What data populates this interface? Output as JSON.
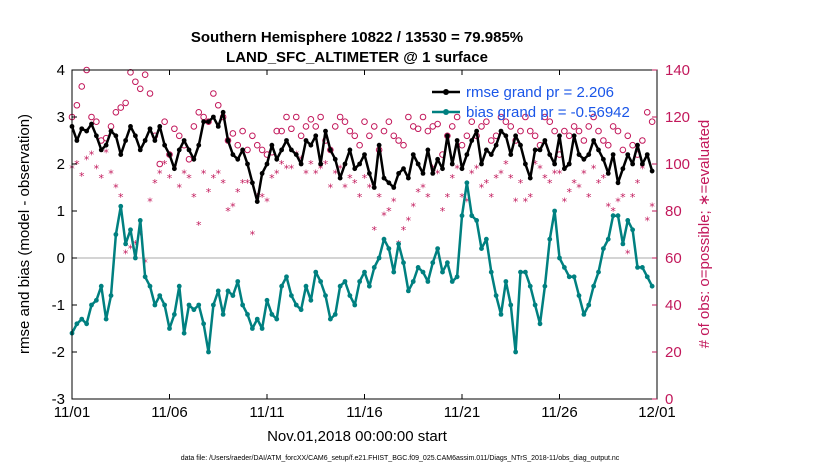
{
  "chart_data": {
    "type": "line",
    "title": "Southern Hemisphere 10822 / 13530 = 79.985%",
    "subtitle": "LAND_SFC_ALTIMETER @ 1 surface",
    "xlabel": "Nov.01,2018 00:00:00 start",
    "ylabel": "rmse and bias (model - observation)",
    "ylabel_right": "# of obs: o=possible; ∗=evaluated",
    "xlim": [
      0,
      30
    ],
    "ylim": [
      -3,
      4
    ],
    "ylim_right": [
      0,
      140
    ],
    "x_tick_values": [
      0,
      5,
      10,
      15,
      20,
      25,
      30
    ],
    "x_tick_labels": [
      "11/01",
      "11/06",
      "11/11",
      "11/16",
      "11/21",
      "11/26",
      "12/01"
    ],
    "y_ticks": [
      -3,
      -2,
      -1,
      0,
      1,
      2,
      3,
      4
    ],
    "y_ticks_right": [
      0,
      20,
      40,
      60,
      80,
      100,
      120,
      140
    ],
    "zero_line": 0,
    "legend_position": "top-right",
    "footnote": "data file: /Users/raeder/DAI/ATM_forcXX/CAM6_setup/f.e21.FHIST_BGC.f09_025.CAM6assim.011/Diags_NTrS_2018-11/obs_diag_output.nc",
    "colors": {
      "rmse": "#000000",
      "bias": "#008080",
      "obs": "#c2185b",
      "legend_text": "#1a56e8",
      "zero": "#aaaaaa"
    },
    "x": [
      0.0,
      0.25,
      0.5,
      0.75,
      1.0,
      1.25,
      1.5,
      1.75,
      2.0,
      2.25,
      2.5,
      2.75,
      3.0,
      3.25,
      3.5,
      3.75,
      4.0,
      4.25,
      4.5,
      4.75,
      5.0,
      5.25,
      5.5,
      5.75,
      6.0,
      6.25,
      6.5,
      6.75,
      7.0,
      7.25,
      7.5,
      7.75,
      8.0,
      8.25,
      8.5,
      8.75,
      9.0,
      9.25,
      9.5,
      9.75,
      10.0,
      10.25,
      10.5,
      10.75,
      11.0,
      11.25,
      11.5,
      11.75,
      12.0,
      12.25,
      12.5,
      12.75,
      13.0,
      13.25,
      13.5,
      13.75,
      14.0,
      14.25,
      14.5,
      14.75,
      15.0,
      15.25,
      15.5,
      15.75,
      16.0,
      16.25,
      16.5,
      16.75,
      17.0,
      17.25,
      17.5,
      17.75,
      18.0,
      18.25,
      18.5,
      18.75,
      19.0,
      19.25,
      19.5,
      19.75,
      20.0,
      20.25,
      20.5,
      20.75,
      21.0,
      21.25,
      21.5,
      21.75,
      22.0,
      22.25,
      22.5,
      22.75,
      23.0,
      23.25,
      23.5,
      23.75,
      24.0,
      24.25,
      24.5,
      24.75,
      25.0,
      25.25,
      25.5,
      25.75,
      26.0,
      26.25,
      26.5,
      26.75,
      27.0,
      27.25,
      27.5,
      27.75,
      28.0,
      28.25,
      28.5,
      28.75,
      29.0,
      29.25,
      29.5,
      29.75
    ],
    "series": [
      {
        "name": "rmse grand pr = 2.206",
        "marker": "dot",
        "values": [
          2.8,
          2.5,
          2.75,
          2.7,
          2.85,
          2.6,
          2.3,
          2.4,
          2.7,
          2.6,
          2.2,
          2.5,
          2.8,
          2.6,
          2.3,
          2.5,
          2.75,
          2.5,
          2.8,
          2.4,
          2.2,
          1.9,
          2.3,
          2.5,
          2.3,
          2.1,
          2.4,
          2.9,
          2.9,
          3.0,
          2.8,
          3.1,
          2.5,
          2.2,
          2.1,
          2.3,
          2.0,
          1.6,
          1.2,
          1.8,
          2.0,
          2.4,
          2.1,
          2.3,
          2.5,
          2.3,
          2.2,
          2.0,
          2.5,
          2.4,
          2.6,
          2.0,
          2.7,
          2.3,
          2.1,
          1.7,
          2.0,
          2.3,
          1.9,
          2.0,
          2.2,
          1.8,
          1.5,
          2.4,
          1.7,
          1.6,
          1.5,
          1.8,
          1.9,
          1.7,
          2.2,
          2.0,
          1.8,
          2.3,
          1.8,
          2.1,
          1.9,
          2.6,
          2.0,
          2.5,
          1.9,
          2.2,
          2.5,
          2.7,
          2.0,
          2.3,
          2.2,
          2.4,
          2.7,
          2.6,
          2.2,
          2.6,
          2.4,
          2.0,
          1.7,
          2.3,
          2.3,
          2.5,
          2.2,
          2.0,
          2.6,
          1.9,
          2.0,
          2.6,
          2.2,
          2.1,
          2.2,
          2.5,
          2.3,
          2.1,
          1.8,
          2.2,
          1.6,
          1.9,
          2.2,
          2.0,
          2.4,
          2.0,
          2.2,
          1.85
        ]
      },
      {
        "name": "bias grand pr = -0.56942",
        "marker": "dot",
        "values": [
          -1.6,
          -1.4,
          -1.3,
          -1.4,
          -1.0,
          -0.9,
          -0.6,
          -1.3,
          -0.8,
          0.5,
          1.1,
          0.3,
          0.6,
          0.0,
          0.8,
          -0.4,
          -0.6,
          -1.0,
          -0.8,
          -1.0,
          -1.5,
          -1.2,
          -0.6,
          -1.6,
          -1.0,
          -1.1,
          -1.0,
          -1.4,
          -2.0,
          -1.0,
          -0.7,
          -1.2,
          -0.7,
          -0.8,
          -0.5,
          -1.0,
          -1.2,
          -1.5,
          -1.3,
          -1.5,
          -0.9,
          -1.2,
          -1.3,
          -0.6,
          -0.4,
          -0.8,
          -1.0,
          -1.1,
          -0.6,
          -0.9,
          -0.3,
          -0.5,
          -0.8,
          -1.3,
          -1.2,
          -0.6,
          -0.5,
          -0.8,
          -1.0,
          -0.5,
          -0.3,
          -0.6,
          -0.2,
          0.0,
          0.4,
          0.2,
          -0.3,
          0.3,
          -0.1,
          -0.7,
          -0.5,
          -0.2,
          -0.3,
          -0.5,
          -0.1,
          0.2,
          -0.3,
          -0.1,
          -0.5,
          -0.4,
          0.9,
          1.6,
          0.9,
          0.8,
          0.2,
          0.4,
          -0.3,
          -0.8,
          -1.2,
          -0.5,
          -1.0,
          -2.0,
          -0.3,
          -0.3,
          -0.6,
          -1.0,
          -1.4,
          -0.6,
          0.4,
          1.0,
          0.0,
          -0.2,
          -0.4,
          -0.4,
          -0.8,
          -1.2,
          -1.0,
          -0.6,
          -0.3,
          0.2,
          0.4,
          0.9,
          0.9,
          0.3,
          0.8,
          0.6,
          -0.2,
          -0.2,
          -0.4,
          -0.6
        ]
      },
      {
        "name": "possible",
        "marker": "circle",
        "values": [
          120,
          125,
          133,
          140,
          120,
          118,
          110,
          111,
          116,
          122,
          124,
          126,
          139,
          135,
          132,
          138,
          130,
          112,
          100,
          118,
          104,
          115,
          112,
          108,
          102,
          116,
          122,
          120,
          118,
          130,
          125,
          120,
          110,
          113,
          108,
          114,
          106,
          112,
          108,
          106,
          104,
          105,
          114,
          114,
          120,
          115,
          120,
          112,
          116,
          119,
          116,
          120,
          110,
          106,
          116,
          120,
          118,
          114,
          112,
          108,
          118,
          112,
          116,
          106,
          114,
          118,
          112,
          110,
          108,
          120,
          116,
          115,
          120,
          114,
          116,
          117,
          104,
          112,
          116,
          120,
          108,
          112,
          118,
          112,
          116,
          118,
          110,
          112,
          120,
          118,
          116,
          110,
          114,
          120,
          114,
          112,
          108,
          120,
          118,
          114,
          104,
          114,
          112,
          116,
          114,
          110,
          116,
          120,
          114,
          110,
          108,
          116,
          114,
          106,
          112,
          108,
          104,
          110,
          122,
          118
        ]
      },
      {
        "name": "evaluated",
        "marker": "star",
        "values": [
          98,
          100,
          95,
          102,
          104,
          98,
          94,
          105,
          96,
          90,
          86,
          62,
          64,
          66,
          70,
          58,
          84,
          92,
          96,
          100,
          94,
          98,
          90,
          96,
          94,
          86,
          74,
          96,
          88,
          94,
          96,
          92,
          80,
          82,
          88,
          92,
          92,
          70,
          86,
          86,
          84,
          94,
          96,
          100,
          98,
          98,
          104,
          102,
          96,
          100,
          96,
          98,
          100,
          90,
          96,
          98,
          90,
          94,
          92,
          86,
          94,
          90,
          72,
          86,
          78,
          80,
          84,
          66,
          72,
          76,
          82,
          88,
          90,
          86,
          98,
          96,
          80,
          86,
          94,
          98,
          86,
          84,
          96,
          98,
          90,
          92,
          86,
          94,
          96,
          100,
          94,
          84,
          92,
          84,
          86,
          100,
          98,
          94,
          92,
          96,
          96,
          84,
          88,
          92,
          90,
          96,
          86,
          98,
          92,
          94,
          82,
          80,
          84,
          86,
          62,
          86,
          92,
          98,
          76,
          82
        ]
      }
    ]
  }
}
